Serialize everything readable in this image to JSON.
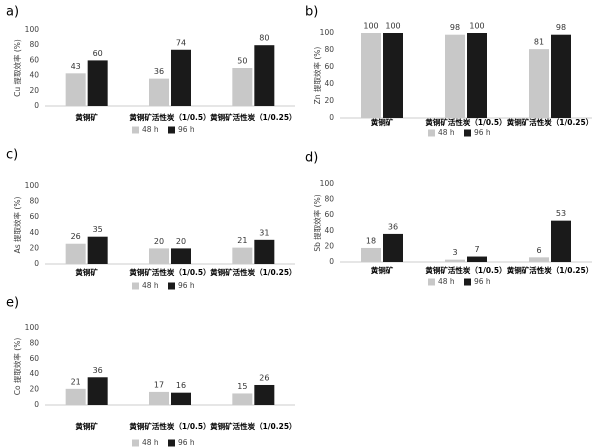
{
  "chart_data": [
    {
      "type": "bar",
      "panel_label": "a)",
      "ylabel": "Cu 提取效率 (%)",
      "categories": [
        "黄铜矿",
        "黄铜矿活性炭（1/0.5）",
        "黄铜矿活性炭（1/0.25）"
      ],
      "series": [
        {
          "name": "48 h",
          "color": "#c8c8c8",
          "values": [
            43,
            36,
            50
          ]
        },
        {
          "name": "96 h",
          "color": "#1a1a1a",
          "values": [
            60,
            74,
            80
          ]
        }
      ],
      "ylim": [
        0,
        100
      ],
      "yticks": [
        0,
        20,
        40,
        60,
        80,
        100
      ],
      "grid": false
    },
    {
      "type": "bar",
      "panel_label": "b)",
      "ylabel": "Zn 提取效率 (%)",
      "categories": [
        "黄铜矿",
        "黄铜矿活性炭（1/0.5）",
        "黄铜矿活性炭（1/0.25）"
      ],
      "series": [
        {
          "name": "48 h",
          "color": "#c8c8c8",
          "values": [
            100,
            98,
            81
          ]
        },
        {
          "name": "96 h",
          "color": "#1a1a1a",
          "values": [
            100,
            100,
            98
          ]
        }
      ],
      "ylim": [
        0,
        100
      ],
      "yticks": [
        0,
        20,
        40,
        60,
        80,
        100
      ],
      "grid": false
    },
    {
      "type": "bar",
      "panel_label": "c)",
      "ylabel": "As 提取效率 (%)",
      "categories": [
        "黄铜矿",
        "黄铜矿活性炭（1/0.5）",
        "黄铜矿活性炭（1/0.25）"
      ],
      "series": [
        {
          "name": "48 h",
          "color": "#c8c8c8",
          "values": [
            26,
            20,
            21
          ]
        },
        {
          "name": "96 h",
          "color": "#1a1a1a",
          "values": [
            35,
            20,
            31
          ]
        }
      ],
      "ylim": [
        0,
        100
      ],
      "yticks": [
        0,
        20,
        40,
        60,
        80,
        100
      ],
      "grid": false
    },
    {
      "type": "bar",
      "panel_label": "d)",
      "ylabel": "Sb 提取效率 (%)",
      "categories": [
        "黄铜矿",
        "黄铜矿活性炭（1/0.5）",
        "黄铜矿活性炭（1/0.25）"
      ],
      "series": [
        {
          "name": "48 h",
          "color": "#c8c8c8",
          "values": [
            18,
            3,
            6
          ]
        },
        {
          "name": "96 h",
          "color": "#1a1a1a",
          "values": [
            36,
            7,
            53
          ]
        }
      ],
      "ylim": [
        0,
        100
      ],
      "yticks": [
        0,
        20,
        40,
        60,
        80,
        100
      ],
      "grid": false
    },
    {
      "type": "bar",
      "panel_label": "e)",
      "ylabel": "Co 提取效率 (%)",
      "categories": [
        "黄铜矿",
        "黄铜矿活性炭（1/0.5）",
        "黄铜矿活性炭（1/0.25）"
      ],
      "series": [
        {
          "name": "48 h",
          "color": "#c8c8c8",
          "values": [
            21,
            17,
            15
          ]
        },
        {
          "name": "96 h",
          "color": "#1a1a1a",
          "values": [
            36,
            16,
            26
          ]
        }
      ],
      "ylim": [
        0,
        100
      ],
      "yticks": [
        0,
        20,
        40,
        60,
        80,
        100
      ],
      "grid": false
    }
  ]
}
